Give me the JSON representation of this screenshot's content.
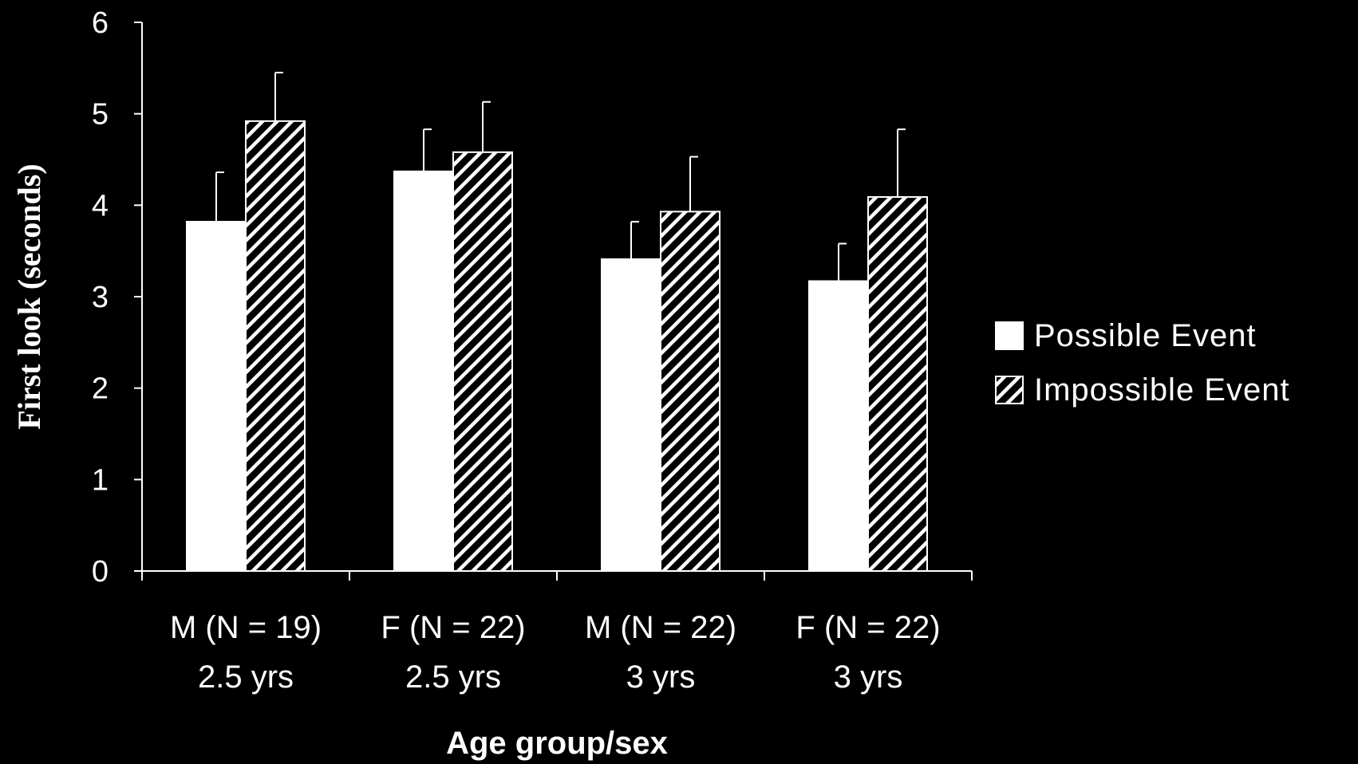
{
  "chart_data": {
    "type": "bar",
    "ylabel": "First look (seconds)",
    "xlabel": "Age group/sex",
    "ylim": [
      0,
      6
    ],
    "yticks": [
      "0",
      "1",
      "2",
      "3",
      "4",
      "5",
      "6"
    ],
    "categories": [
      {
        "line1": "M (N = 19)",
        "line2": "2.5 yrs"
      },
      {
        "line1": "F (N = 22)",
        "line2": "2.5 yrs"
      },
      {
        "line1": "M (N = 22)",
        "line2": "3 yrs"
      },
      {
        "line1": "F (N = 22)",
        "line2": "3 yrs"
      }
    ],
    "series": [
      {
        "name": "Possible Event",
        "pattern": "solid",
        "color": "#ffffff",
        "values": [
          3.82,
          4.37,
          3.41,
          3.17
        ],
        "errors": [
          0.54,
          0.46,
          0.41,
          0.41
        ]
      },
      {
        "name": "Impossible Event",
        "pattern": "hatched",
        "color": "#ffffff",
        "values": [
          4.92,
          4.58,
          3.93,
          4.09
        ],
        "errors": [
          0.53,
          0.55,
          0.6,
          0.74
        ]
      }
    ],
    "legend_position": "right",
    "grid": false
  }
}
